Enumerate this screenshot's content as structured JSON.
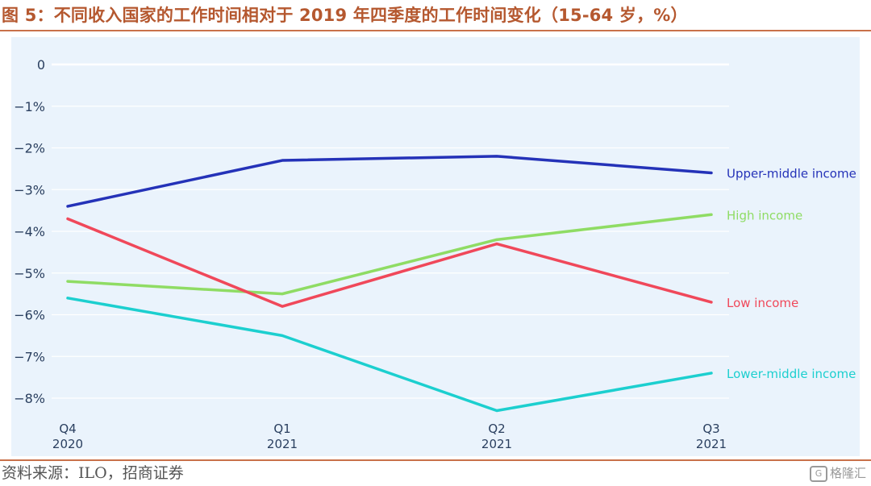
{
  "figure": {
    "title": "图 5：不同收入国家的工作时间相对于 2019 年四季度的工作时间变化（15-64 岁，%）",
    "source": "资料来源：ILO，招商证券",
    "watermark": "格隆汇"
  },
  "chart_data": {
    "type": "line",
    "title": "",
    "xlabel": "",
    "ylabel": "",
    "categories": [
      "Q4|2020",
      "Q1|2021",
      "Q2|2021",
      "Q3|2021"
    ],
    "ylim": [
      -8.5,
      0.3
    ],
    "yticks": [
      0,
      -1,
      -2,
      -3,
      -4,
      -5,
      -6,
      -7,
      -8
    ],
    "ytick_labels": [
      "0",
      "−1%",
      "−2%",
      "−3%",
      "−4%",
      "−5%",
      "−6%",
      "−7%",
      "−8%"
    ],
    "grid": true,
    "legend": "inline-right",
    "background": "#eaf3fc",
    "series": [
      {
        "name": "Upper-middle income",
        "color": "#2432b8",
        "values": [
          -3.4,
          -2.3,
          -2.2,
          -2.6
        ]
      },
      {
        "name": "High income",
        "color": "#8fdc64",
        "values": [
          -5.2,
          -5.5,
          -4.2,
          -3.6
        ]
      },
      {
        "name": "Low income",
        "color": "#f0485a",
        "values": [
          -3.7,
          -5.8,
          -4.3,
          -5.7
        ]
      },
      {
        "name": "Lower-middle income",
        "color": "#1ccfcf",
        "values": [
          -5.6,
          -6.5,
          -8.3,
          -7.4
        ]
      }
    ]
  }
}
